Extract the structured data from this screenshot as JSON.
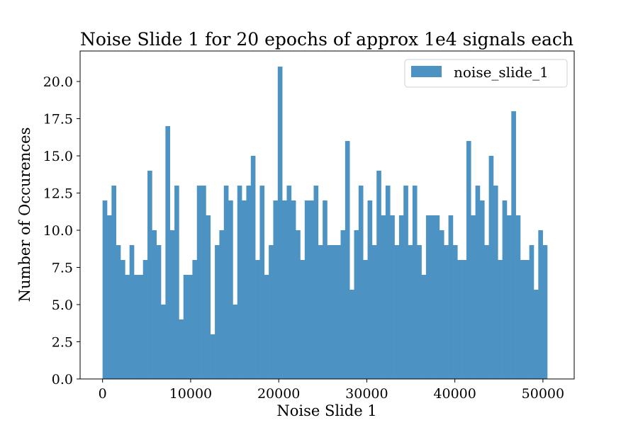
{
  "chart_data": {
    "type": "bar",
    "title": "Noise Slide 1 for 20 epochs of approx 1e4 signals each",
    "xlabel": "Noise Slide 1",
    "ylabel": "Number of Occurences",
    "xlim": [
      -2550,
      53550
    ],
    "ylim": [
      0,
      22.05
    ],
    "bin_start": 0,
    "bin_width": 510,
    "series": [
      {
        "name": "noise_slide_1",
        "color": "#4c92c3",
        "values": [
          12,
          11,
          13,
          9,
          8,
          7,
          9,
          7,
          7,
          8,
          14,
          10,
          9,
          5,
          17,
          10,
          13,
          4,
          7,
          7,
          8,
          13,
          13,
          11,
          3,
          9,
          10,
          13,
          12,
          5,
          13,
          12,
          13,
          15,
          8,
          13,
          7,
          9,
          12,
          21,
          12,
          13,
          12,
          10,
          8,
          12,
          12,
          13,
          9,
          12,
          9,
          9,
          9,
          10,
          16,
          6,
          10,
          13,
          8,
          12,
          9,
          14,
          11,
          13,
          11,
          9,
          11,
          13,
          9,
          13,
          9,
          7,
          11,
          11,
          11,
          10,
          9,
          11,
          9,
          8,
          8,
          16,
          11,
          13,
          12,
          9,
          15,
          13,
          8,
          12,
          11,
          18,
          11,
          8,
          8,
          9,
          6,
          10,
          9
        ]
      }
    ],
    "xticks": [
      0,
      10000,
      20000,
      30000,
      40000,
      50000
    ],
    "xtick_labels": [
      "0",
      "10000",
      "20000",
      "30000",
      "40000",
      "50000"
    ],
    "yticks": [
      0,
      2.5,
      5,
      7.5,
      10,
      12.5,
      15,
      17.5,
      20
    ],
    "ytick_labels": [
      "0.0",
      "2.5",
      "5.0",
      "7.5",
      "10.0",
      "12.5",
      "15.0",
      "17.5",
      "20.0"
    ],
    "grid": false,
    "legend": "top-right"
  }
}
